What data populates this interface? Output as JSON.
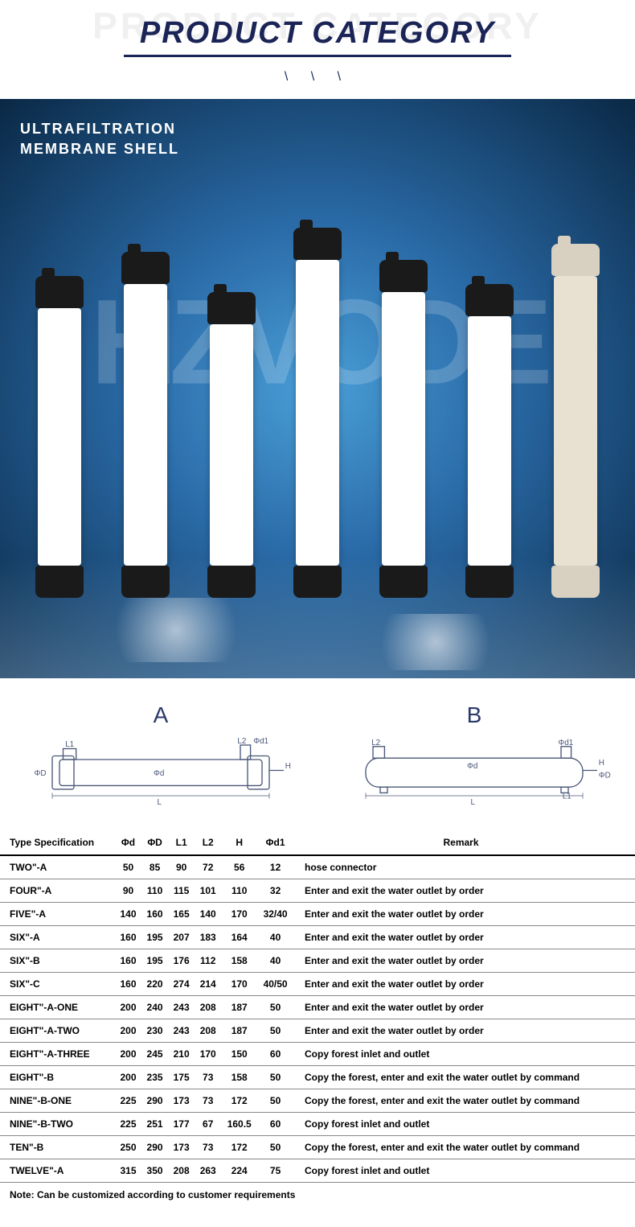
{
  "header": {
    "title_bg": "PRODUCT CATEGORY",
    "title_fg": "PRODUCT CATEGORY",
    "slashes": "\\  \\  \\"
  },
  "hero": {
    "title_line1": "ULTRAFILTRATION",
    "title_line2": "MEMBRANE SHELL",
    "watermark": "HZVODE",
    "filters": [
      {
        "body_height": 320,
        "cap": "dark",
        "body": "white"
      },
      {
        "body_height": 350,
        "cap": "dark",
        "body": "white"
      },
      {
        "body_height": 300,
        "cap": "dark",
        "body": "white"
      },
      {
        "body_height": 380,
        "cap": "dark",
        "body": "white"
      },
      {
        "body_height": 340,
        "cap": "dark",
        "body": "white"
      },
      {
        "body_height": 310,
        "cap": "dark",
        "body": "white"
      },
      {
        "body_height": 360,
        "cap": "light",
        "body": "cream"
      }
    ]
  },
  "diagrams": {
    "a_label": "A",
    "b_label": "B",
    "stroke": "#4a5878",
    "stroke_width": 1.5,
    "labels": {
      "L1": "L1",
      "L2": "L2",
      "L": "L",
      "phiD": "ΦD",
      "phid": "Φd",
      "phid1": "Φd1",
      "H": "H"
    }
  },
  "table": {
    "columns": [
      "Type Specification",
      "Φd",
      "ΦD",
      "L1",
      "L2",
      "H",
      "Φd1",
      "Remark"
    ],
    "rows": [
      [
        "TWO\"-A",
        "50",
        "85",
        "90",
        "72",
        "56",
        "12",
        "hose connector"
      ],
      [
        "FOUR\"-A",
        "90",
        "110",
        "115",
        "101",
        "110",
        "32",
        "Enter and exit the water outlet by order"
      ],
      [
        "FIVE\"-A",
        "140",
        "160",
        "165",
        "140",
        "170",
        "32/40",
        "Enter and exit the water outlet by order"
      ],
      [
        "SIX\"-A",
        "160",
        "195",
        "207",
        "183",
        "164",
        "40",
        "Enter and exit the water outlet by order"
      ],
      [
        "SIX\"-B",
        "160",
        "195",
        "176",
        "112",
        "158",
        "40",
        "Enter and exit the water outlet by order"
      ],
      [
        "SIX\"-C",
        "160",
        "220",
        "274",
        "214",
        "170",
        "40/50",
        "Enter and exit the water outlet by order"
      ],
      [
        "EIGHT\"-A-ONE",
        "200",
        "240",
        "243",
        "208",
        "187",
        "50",
        "Enter and exit the water outlet by order"
      ],
      [
        "EIGHT\"-A-TWO",
        "200",
        "230",
        "243",
        "208",
        "187",
        "50",
        "Enter and exit the water outlet by order"
      ],
      [
        "EIGHT\"-A-THREE",
        "200",
        "245",
        "210",
        "170",
        "150",
        "60",
        "Copy forest inlet and outlet"
      ],
      [
        "EIGHT\"-B",
        "200",
        "235",
        "175",
        "73",
        "158",
        "50",
        "Copy the forest, enter and exit the water outlet by command"
      ],
      [
        "NINE\"-B-ONE",
        "225",
        "290",
        "173",
        "73",
        "172",
        "50",
        "Copy the forest, enter and exit the water outlet by command"
      ],
      [
        "NINE\"-B-TWO",
        "225",
        "251",
        "177",
        "67",
        "160.5",
        "60",
        "Copy forest inlet and outlet"
      ],
      [
        "TEN\"-B",
        "250",
        "290",
        "173",
        "73",
        "172",
        "50",
        "Copy the forest, enter and exit the water outlet by command"
      ],
      [
        "TWELVE\"-A",
        "315",
        "350",
        "208",
        "263",
        "224",
        "75",
        "Copy forest inlet and outlet"
      ]
    ],
    "note": "Note: Can be customized according to customer requirements"
  }
}
